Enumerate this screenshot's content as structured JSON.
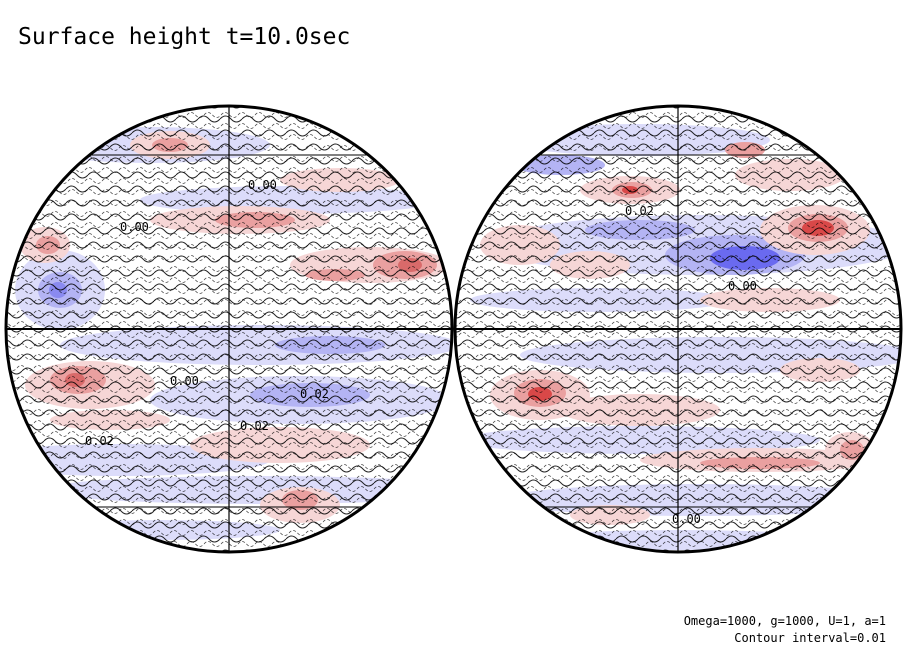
{
  "title": "Surface height t=10.0sec",
  "footer": {
    "params": "Omega=1000, g=1000, U=1, a=1",
    "interval": "Contour interval=0.01"
  },
  "colors": {
    "positive_light": "#f6d6d6",
    "positive_mid": "#eaa0a0",
    "positive_strong": "#d94848",
    "negative_light": "#dcdcfa",
    "negative_mid": "#b4b4f4",
    "negative_strong": "#5a5aee",
    "line": "#000000"
  },
  "contour_labels": {
    "left": [
      "0.00",
      "0.00",
      "0.00",
      "0.02",
      "0.02",
      "0.02"
    ],
    "right": [
      "0.02",
      "0.00",
      "0.00"
    ]
  }
}
